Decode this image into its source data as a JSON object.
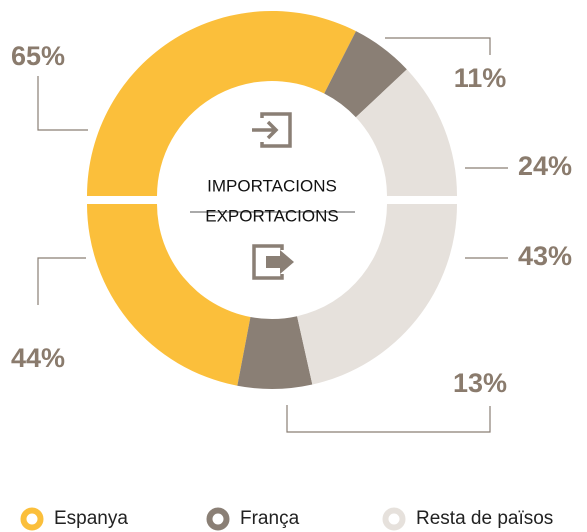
{
  "chart_data": {
    "type": "donut",
    "categories": [
      "Espanya",
      "França",
      "Resta de països"
    ],
    "colors": [
      "#fbbf3b",
      "#8a7f75",
      "#e6e1dc"
    ],
    "series": [
      {
        "name": "IMPORTACIONS",
        "values": [
          65,
          11,
          24
        ],
        "value_labels": [
          "65%",
          "11%",
          "24%"
        ]
      },
      {
        "name": "EXPORTACIONS",
        "values": [
          44,
          13,
          43
        ],
        "value_labels": [
          "44%",
          "13%",
          "43%"
        ]
      }
    ]
  }
}
